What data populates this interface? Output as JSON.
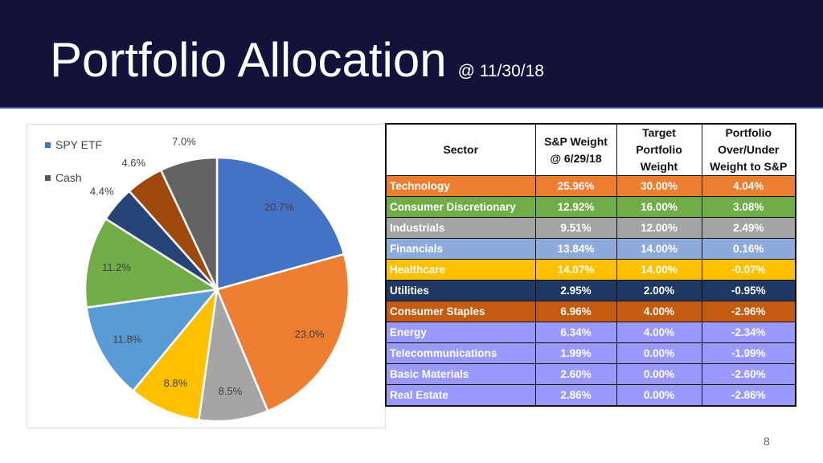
{
  "slide": {
    "title": "Portfolio Allocation",
    "subtitle": "@ 11/30/18",
    "page_number": "8",
    "colors": {
      "header_bg": "#12123a"
    }
  },
  "chart_data": {
    "type": "pie",
    "legend": [
      {
        "label": "SPY ETF",
        "color": "#4472c4"
      },
      {
        "label": "Cash",
        "color": "#595959"
      }
    ],
    "slices": [
      {
        "value": 20.7,
        "label": "20.7%",
        "color": "#4472c4"
      },
      {
        "value": 23.0,
        "label": "23.0%",
        "color": "#ed7d31"
      },
      {
        "value": 8.5,
        "label": "8.5%",
        "color": "#a5a5a5"
      },
      {
        "value": 8.8,
        "label": "8.8%",
        "color": "#ffc000"
      },
      {
        "value": 11.8,
        "label": "11.8%",
        "color": "#5b9bd5"
      },
      {
        "value": 11.2,
        "label": "11.2%",
        "color": "#70ad47"
      },
      {
        "value": 4.4,
        "label": "4.4%",
        "color": "#264478"
      },
      {
        "value": 4.6,
        "label": "4.6%",
        "color": "#9e480e"
      },
      {
        "value": 7.0,
        "label": "7.0%",
        "color": "#636363"
      }
    ]
  },
  "table": {
    "headers": [
      "Sector",
      "S&P Weight @ 6/29/18",
      "Target Portfolio Weight",
      "Portfolio Over/Under Weight to S&P"
    ],
    "rows": [
      {
        "sector": "Technology",
        "sp": "25.96%",
        "target": "30.00%",
        "diff": "4.04%",
        "bg": "#ed7d31",
        "fg": "#ffffff"
      },
      {
        "sector": "Consumer Discretionary",
        "sp": "12.92%",
        "target": "16.00%",
        "diff": "3.08%",
        "bg": "#70ad47",
        "fg": "#ffffff"
      },
      {
        "sector": "Industrials",
        "sp": "9.51%",
        "target": "12.00%",
        "diff": "2.49%",
        "bg": "#a5a5a5",
        "fg": "#ffffff"
      },
      {
        "sector": "Financials",
        "sp": "13.84%",
        "target": "14.00%",
        "diff": "0.16%",
        "bg": "#8eaadb",
        "fg": "#ffffff"
      },
      {
        "sector": "Healthcare",
        "sp": "14.07%",
        "target": "14.00%",
        "diff": "-0.07%",
        "bg": "#ffc000",
        "fg": "#ffffff"
      },
      {
        "sector": "Utilities",
        "sp": "2.95%",
        "target": "2.00%",
        "diff": "-0.95%",
        "bg": "#203864",
        "fg": "#ffffff"
      },
      {
        "sector": "Consumer Staples",
        "sp": "6.96%",
        "target": "4.00%",
        "diff": "-2.96%",
        "bg": "#c55a11",
        "fg": "#ffffff"
      },
      {
        "sector": "Energy",
        "sp": "6.34%",
        "target": "4.00%",
        "diff": "-2.34%",
        "bg": "#9999ff",
        "fg": "#ffffff"
      },
      {
        "sector": "Telecommunications",
        "sp": "1.99%",
        "target": "0.00%",
        "diff": "-1.99%",
        "bg": "#9999ff",
        "fg": "#ffffff"
      },
      {
        "sector": "Basic Materials",
        "sp": "2.60%",
        "target": "0.00%",
        "diff": "-2.60%",
        "bg": "#9999ff",
        "fg": "#ffffff"
      },
      {
        "sector": "Real Estate",
        "sp": "2.86%",
        "target": "0.00%",
        "diff": "-2.86%",
        "bg": "#9999ff",
        "fg": "#ffffff"
      }
    ]
  }
}
